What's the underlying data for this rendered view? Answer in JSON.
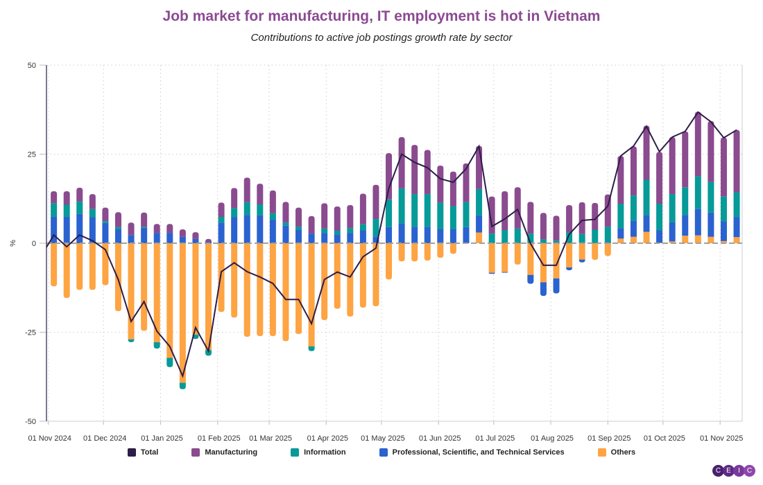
{
  "title": "Job market for manufacturing, IT employment is hot in Vietnam",
  "subtitle": "Contributions to active job postings growth rate by sector",
  "logo_text": "CEIC",
  "colors": {
    "title": "#8b4a92",
    "Total": "#2d1d48",
    "Manufacturing": "#8a4b8f",
    "Information": "#069a98",
    "Professional": "#2a62d0",
    "Others": "#fea443"
  },
  "chart_data": {
    "type": "bar",
    "stacked": true,
    "ylabel": "%",
    "xlabel": "",
    "ylim": [
      -50,
      50
    ],
    "yticks": [
      50,
      25,
      0,
      -25,
      -50
    ],
    "xlim": [
      "2024-10-31",
      "2025-11-13"
    ],
    "xticks": [
      {
        "date": "2024-11-01",
        "label": "01 Nov 2024"
      },
      {
        "date": "2024-12-01",
        "label": "01 Dec 2024"
      },
      {
        "date": "2025-01-01",
        "label": "01 Jan 2025"
      },
      {
        "date": "2025-02-01",
        "label": "01 Feb 2025"
      },
      {
        "date": "2025-03-01",
        "label": "01 Mar 2025"
      },
      {
        "date": "2025-04-01",
        "label": "01 Apr 2025"
      },
      {
        "date": "2025-05-01",
        "label": "01 May 2025"
      },
      {
        "date": "2025-06-01",
        "label": "01 Jun 2025"
      },
      {
        "date": "2025-07-01",
        "label": "01 Jul 2025"
      },
      {
        "date": "2025-08-01",
        "label": "01 Aug 2025"
      },
      {
        "date": "2025-09-01",
        "label": "01 Sep 2025"
      },
      {
        "date": "2025-10-01",
        "label": "01 Oct 2025"
      },
      {
        "date": "2025-11-01",
        "label": "01 Nov 2025"
      }
    ],
    "grid": true,
    "legend_position": "bottom",
    "dates": [
      "2024-11-04",
      "2024-11-11",
      "2024-11-18",
      "2024-11-25",
      "2024-12-02",
      "2024-12-09",
      "2024-12-16",
      "2024-12-23",
      "2024-12-30",
      "2025-01-06",
      "2025-01-13",
      "2025-01-20",
      "2025-01-27",
      "2025-02-03",
      "2025-02-10",
      "2025-02-17",
      "2025-02-24",
      "2025-03-03",
      "2025-03-10",
      "2025-03-17",
      "2025-03-24",
      "2025-03-31",
      "2025-04-07",
      "2025-04-14",
      "2025-04-21",
      "2025-04-28",
      "2025-05-05",
      "2025-05-12",
      "2025-05-19",
      "2025-05-26",
      "2025-06-02",
      "2025-06-09",
      "2025-06-16",
      "2025-06-23",
      "2025-06-30",
      "2025-07-07",
      "2025-07-14",
      "2025-07-21",
      "2025-07-28",
      "2025-08-04",
      "2025-08-11",
      "2025-08-18",
      "2025-08-25",
      "2025-09-01",
      "2025-09-08",
      "2025-09-15",
      "2025-09-22",
      "2025-09-29",
      "2025-10-06",
      "2025-10-13",
      "2025-10-20",
      "2025-10-27",
      "2025-11-03",
      "2025-11-10"
    ],
    "series": [
      {
        "name": "Others",
        "kind": "bar",
        "values": [
          -12.1,
          -15.4,
          -13.1,
          -13.1,
          -11.8,
          -19.1,
          -27.0,
          -24.6,
          -27.8,
          -32.2,
          -39.2,
          -25.7,
          -30.0,
          -19.3,
          -20.9,
          -26.3,
          -26.1,
          -26.1,
          -27.5,
          -25.5,
          -29.0,
          -21.6,
          -18.4,
          -20.6,
          -18.1,
          -17.7,
          -10.2,
          -5.1,
          -5.1,
          -4.9,
          -4.1,
          -3.0,
          0,
          3.0,
          -8.3,
          -8.1,
          -6.0,
          -8.9,
          -11.0,
          -9.9,
          -6.8,
          -4.6,
          -4.7,
          -3.6,
          1.3,
          1.8,
          3.2,
          0.1,
          0.5,
          2.1,
          2.2,
          1.8,
          0.6,
          1.7
        ]
      },
      {
        "name": "Professional, Scientific, and Technical Services",
        "kind": "bar",
        "values": [
          7.4,
          7.4,
          8.2,
          7.3,
          5.7,
          3.9,
          2.3,
          4.3,
          2.9,
          2.9,
          1.8,
          1.2,
          0.4,
          5.8,
          7.3,
          7.9,
          7.8,
          6.6,
          4.9,
          3.7,
          2.7,
          2.9,
          2.5,
          2.9,
          3.6,
          1.9,
          4.5,
          5.6,
          4.6,
          4.6,
          4.0,
          4.0,
          4.5,
          4.8,
          -0.3,
          -0.2,
          0,
          -2.5,
          -3.8,
          -4.2,
          -0.8,
          -0.8,
          0,
          0.3,
          2.9,
          4.5,
          4.7,
          3.5,
          5.4,
          5.8,
          7.4,
          6.8,
          5.6,
          5.6
        ]
      },
      {
        "name": "Information",
        "kind": "bar",
        "values": [
          3.8,
          3.4,
          3.5,
          2.3,
          0.5,
          0.6,
          -0.8,
          0.3,
          -1.8,
          -2.6,
          -1.8,
          -1.2,
          -1.6,
          1.6,
          2.6,
          3.6,
          3.1,
          1.8,
          0.9,
          0.9,
          -1.3,
          1.2,
          1.0,
          1.3,
          1.7,
          4.9,
          7.8,
          9.8,
          9.2,
          9.2,
          7.4,
          6.4,
          7.0,
          7.4,
          2.7,
          3.7,
          4.1,
          2.7,
          1.1,
          0.7,
          3.0,
          2.6,
          3.8,
          4.3,
          6.9,
          7.1,
          9.9,
          7.5,
          7.9,
          7.8,
          9.2,
          8.6,
          6.9,
          7.0
        ]
      },
      {
        "name": "Manufacturing",
        "kind": "bar",
        "values": [
          3.4,
          3.8,
          3.9,
          4.2,
          3.8,
          4.2,
          3.5,
          4.0,
          2.5,
          2.5,
          2.1,
          1.9,
          0.8,
          4.0,
          5.6,
          6.9,
          5.8,
          6.4,
          5.8,
          5.4,
          4.9,
          7.1,
          6.8,
          6.5,
          8.6,
          9.6,
          13.0,
          14.4,
          13.8,
          12.4,
          10.4,
          9.7,
          10.9,
          12.1,
          10.4,
          10.9,
          11.6,
          8.9,
          7.4,
          7.0,
          7.7,
          8.9,
          7.5,
          9.1,
          13.4,
          13.8,
          15.2,
          14.5,
          16.0,
          15.7,
          18.1,
          17.1,
          16.6,
          17.5
        ]
      },
      {
        "name": "Total",
        "kind": "line",
        "leading_point": {
          "date": "2024-10-28",
          "value": -3.7
        },
        "values": [
          2.3,
          -1.0,
          2.3,
          0.7,
          -1.8,
          -10.2,
          -22.0,
          -16.4,
          -24.7,
          -29.0,
          -37.3,
          -23.7,
          -30.3,
          -8.0,
          -5.5,
          -8.0,
          -9.5,
          -11.3,
          -15.8,
          -15.8,
          -22.6,
          -10.2,
          -8.1,
          -9.5,
          -3.8,
          -1.4,
          15.4,
          25.0,
          22.7,
          21.2,
          18.1,
          17.1,
          20.9,
          27.2,
          4.7,
          6.8,
          9.5,
          -0.1,
          -6.2,
          -6.2,
          2.5,
          6.4,
          6.7,
          10.4,
          24.5,
          27.3,
          32.8,
          25.7,
          29.8,
          31.4,
          36.8,
          34.1,
          29.6,
          31.8
        ]
      }
    ]
  },
  "legend": [
    {
      "label": "Total",
      "color": "#2d1d48"
    },
    {
      "label": "Manufacturing",
      "color": "#8a4b8f"
    },
    {
      "label": "Information",
      "color": "#069a98"
    },
    {
      "label": "Professional, Scientific, and Technical Services",
      "color": "#2a62d0"
    },
    {
      "label": "Others",
      "color": "#fea443"
    }
  ]
}
